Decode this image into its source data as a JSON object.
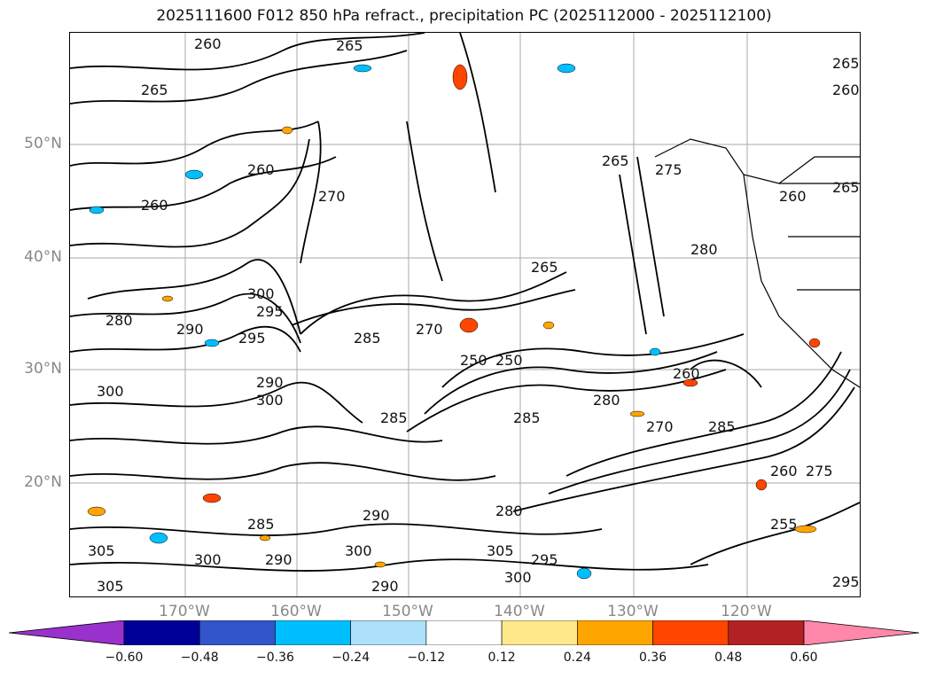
{
  "title": "2025111600 F012 850 hPa refract., precipitation PC (2025112000 - 2025112100)",
  "map": {
    "lat_labels": [
      "50°N",
      "40°N",
      "30°N",
      "20°N"
    ],
    "lon_labels": [
      "170°W",
      "160°W",
      "150°W",
      "140°W",
      "130°W",
      "120°W"
    ],
    "contour_labels": [
      "260",
      "265",
      "265",
      "260",
      "265",
      "270",
      "265",
      "260",
      "275",
      "265",
      "260",
      "265",
      "260",
      "280",
      "270",
      "285",
      "290",
      "295",
      "300",
      "295",
      "280",
      "250",
      "280",
      "285",
      "285",
      "290",
      "300",
      "300",
      "305",
      "305",
      "300",
      "305",
      "300",
      "300",
      "295",
      "290",
      "280",
      "285",
      "260",
      "255",
      "295",
      "270",
      "250",
      "260",
      "275",
      "285",
      "290",
      "290"
    ]
  },
  "colorbar": {
    "ticks": [
      "−0.60",
      "−0.48",
      "−0.36",
      "−0.24",
      "−0.12",
      "0.12",
      "0.24",
      "0.36",
      "0.48",
      "0.60"
    ],
    "colors": [
      "#9932CC",
      "#000099",
      "#3355CC",
      "#00BFFF",
      "#ADE0FA",
      "#FFFFFF",
      "#FFE98A",
      "#FFA500",
      "#FF4500",
      "#B22222",
      "#FF88AA"
    ]
  }
}
